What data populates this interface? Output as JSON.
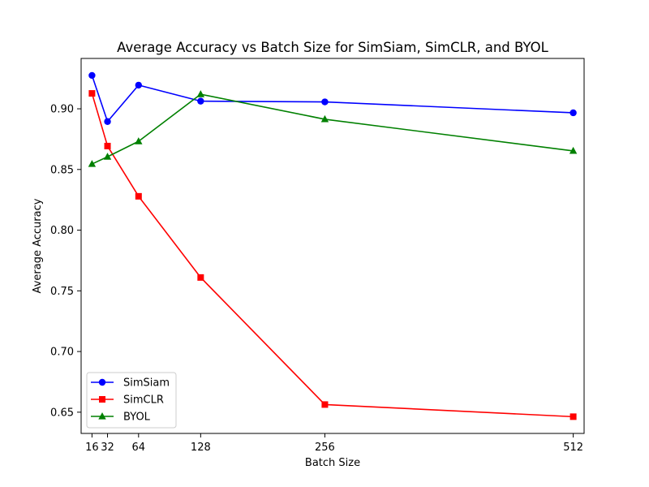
{
  "chart_data": {
    "type": "line",
    "title": "Average Accuracy vs Batch Size for SimSiam, SimCLR, and BYOL",
    "xlabel": "Batch Size",
    "ylabel": "Average Accuracy",
    "x": [
      16,
      32,
      64,
      128,
      256,
      512
    ],
    "x_tick_labels": [
      "16",
      "32",
      "64",
      "128",
      "256",
      "512"
    ],
    "xlim": [
      4.8,
      523.2
    ],
    "ylim": [
      0.6325,
      0.9415
    ],
    "y_ticks": [
      0.65,
      0.7,
      0.75,
      0.8,
      0.85,
      0.9
    ],
    "y_tick_labels": [
      "0.65",
      "0.70",
      "0.75",
      "0.80",
      "0.85",
      "0.90"
    ],
    "grid": false,
    "legend_position": "lower-left",
    "series": [
      {
        "name": "SimSiam",
        "color": "#0000ff",
        "marker": "circle",
        "values": [
          0.9275,
          0.8895,
          0.9195,
          0.9063,
          0.9057,
          0.8967
        ]
      },
      {
        "name": "SimCLR",
        "color": "#ff0000",
        "marker": "square",
        "values": [
          0.9127,
          0.8693,
          0.8279,
          0.761,
          0.6563,
          0.6463
        ]
      },
      {
        "name": "BYOL",
        "color": "#008000",
        "marker": "triangle",
        "values": [
          0.8545,
          0.8605,
          0.8732,
          0.912,
          0.8914,
          0.8653
        ]
      }
    ]
  }
}
